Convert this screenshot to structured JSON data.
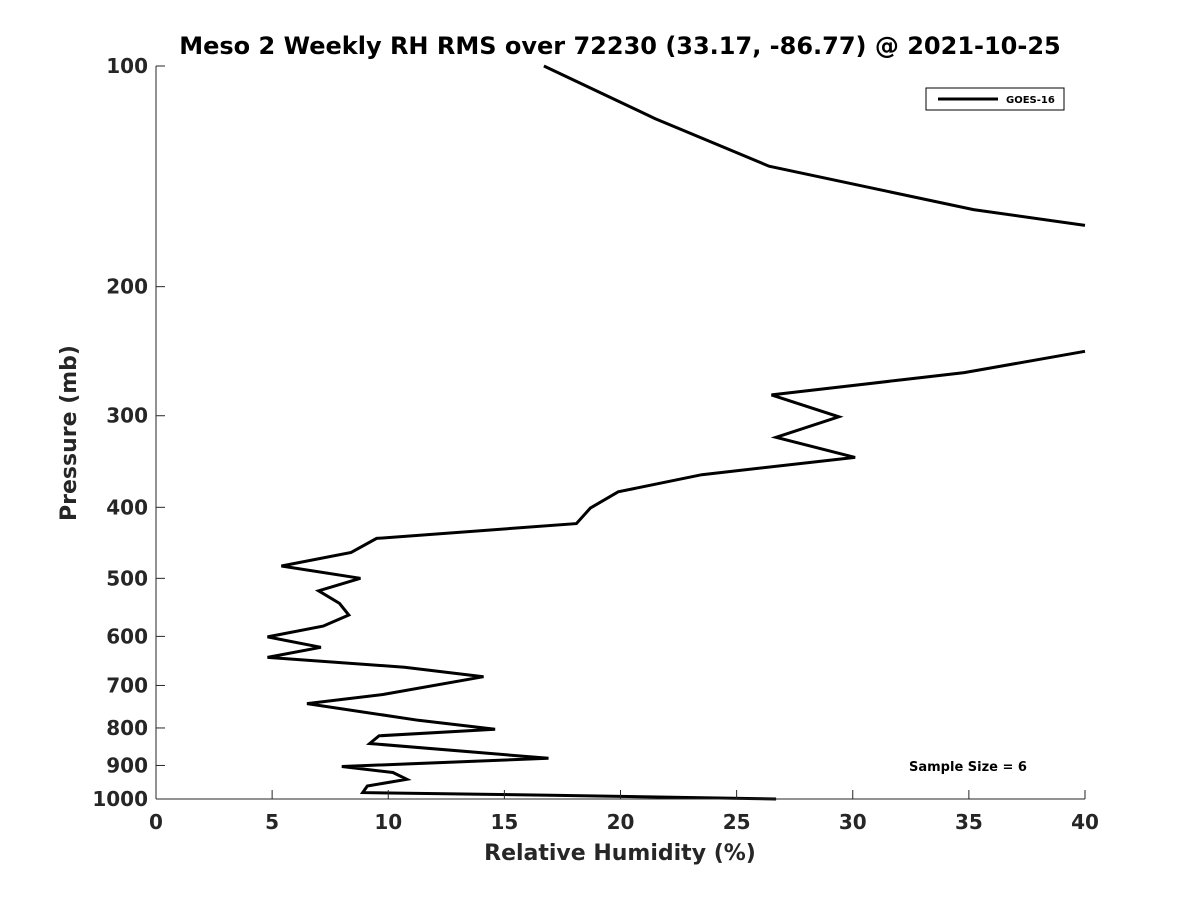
{
  "chart_data": {
    "type": "line",
    "title": "Meso 2 Weekly RH RMS over 72230 (33.17, -86.77) @ 2021-10-25",
    "xlabel": "Relative Humidity (%)",
    "ylabel": "Pressure (mb)",
    "xlim": [
      0,
      40
    ],
    "ylim": [
      100,
      1000
    ],
    "yscale": "log",
    "yreversed": true,
    "xticks": [
      0,
      5,
      10,
      15,
      20,
      25,
      30,
      35,
      40
    ],
    "xtick_labels": [
      "0",
      "5",
      "10",
      "15",
      "20",
      "25",
      "30",
      "35",
      "40"
    ],
    "yticks": [
      100,
      200,
      300,
      400,
      500,
      600,
      700,
      800,
      900,
      1000
    ],
    "ytick_labels": [
      "100",
      "200",
      "300",
      "400",
      "500",
      "600",
      "700",
      "800",
      "900",
      "1000"
    ],
    "grid": false,
    "legend_position": "top-right",
    "series": [
      {
        "name": "GOES-16",
        "color": "#000000",
        "segments": [
          [
            {
              "x": 16.7,
              "p": 100
            },
            {
              "x": 21.5,
              "p": 118
            },
            {
              "x": 26.4,
              "p": 137
            },
            {
              "x": 35.2,
              "p": 157
            },
            {
              "x": 40.0,
              "p": 165
            }
          ],
          [
            {
              "x": 40.0,
              "p": 245
            },
            {
              "x": 34.8,
              "p": 262
            },
            {
              "x": 26.5,
              "p": 281
            },
            {
              "x": 29.4,
              "p": 301
            },
            {
              "x": 26.7,
              "p": 321
            },
            {
              "x": 30.1,
              "p": 342
            },
            {
              "x": 23.5,
              "p": 361
            },
            {
              "x": 19.9,
              "p": 381
            },
            {
              "x": 18.7,
              "p": 401
            },
            {
              "x": 18.1,
              "p": 421
            },
            {
              "x": 9.5,
              "p": 441
            },
            {
              "x": 8.4,
              "p": 461
            },
            {
              "x": 5.4,
              "p": 481
            },
            {
              "x": 8.8,
              "p": 500
            },
            {
              "x": 7.0,
              "p": 520
            },
            {
              "x": 7.9,
              "p": 541
            },
            {
              "x": 8.3,
              "p": 561
            },
            {
              "x": 7.2,
              "p": 581
            },
            {
              "x": 4.8,
              "p": 601
            },
            {
              "x": 7.1,
              "p": 621
            },
            {
              "x": 4.8,
              "p": 641
            },
            {
              "x": 10.7,
              "p": 661
            },
            {
              "x": 14.1,
              "p": 681
            },
            {
              "x": 9.8,
              "p": 720
            },
            {
              "x": 6.5,
              "p": 741
            },
            {
              "x": 11.3,
              "p": 781
            },
            {
              "x": 14.6,
              "p": 803
            },
            {
              "x": 9.6,
              "p": 820
            },
            {
              "x": 9.2,
              "p": 840
            },
            {
              "x": 16.9,
              "p": 880
            },
            {
              "x": 8.0,
              "p": 903
            },
            {
              "x": 10.2,
              "p": 920
            },
            {
              "x": 10.8,
              "p": 940
            },
            {
              "x": 9.1,
              "p": 960
            },
            {
              "x": 8.9,
              "p": 980
            },
            {
              "x": 17.0,
              "p": 988
            },
            {
              "x": 26.7,
              "p": 1000
            }
          ]
        ]
      }
    ],
    "legend": [
      "GOES-16"
    ],
    "annotation": "Sample Size = 6"
  }
}
